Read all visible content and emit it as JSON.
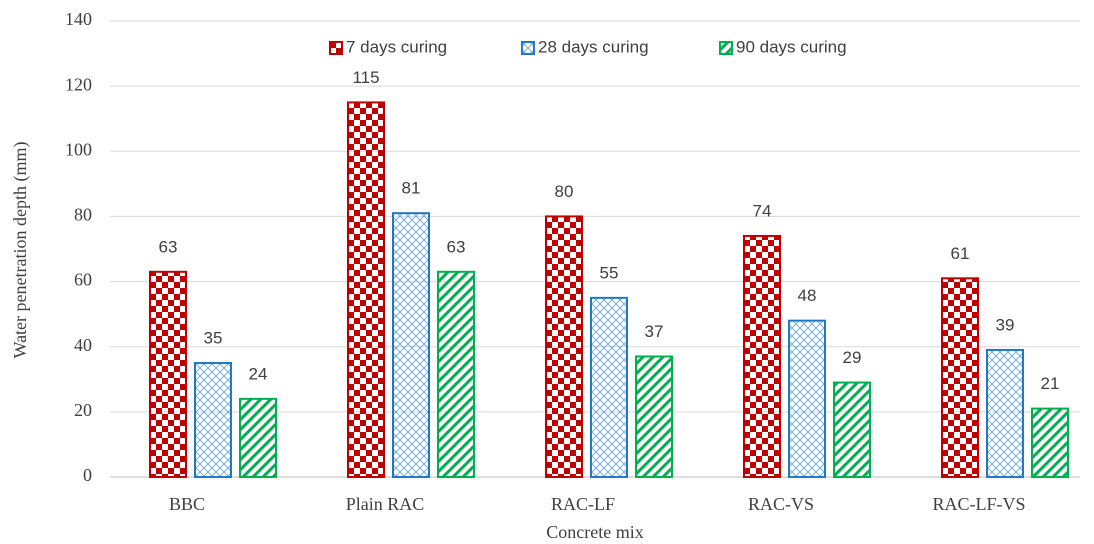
{
  "chart_data": {
    "type": "bar",
    "categories": [
      "BBC",
      "Plain RAC",
      "RAC-LF",
      "RAC-VS",
      "RAC-LF-VS"
    ],
    "series": [
      {
        "name": "7 days curing",
        "color": "#c00000",
        "values": [
          63,
          115,
          80,
          74,
          61
        ]
      },
      {
        "name": "28 days curing",
        "color": "#1f78c8",
        "values": [
          35,
          81,
          55,
          48,
          39
        ]
      },
      {
        "name": "90 days curing",
        "color": "#00b050",
        "values": [
          24,
          63,
          37,
          29,
          21
        ]
      }
    ],
    "x_label": "Concrete mix",
    "y_label": "Water penetration depth (mm)",
    "ylim": [
      0,
      140
    ],
    "yticks": [
      0,
      20,
      40,
      60,
      80,
      100,
      120,
      140
    ],
    "grid": true,
    "legend": "top"
  }
}
